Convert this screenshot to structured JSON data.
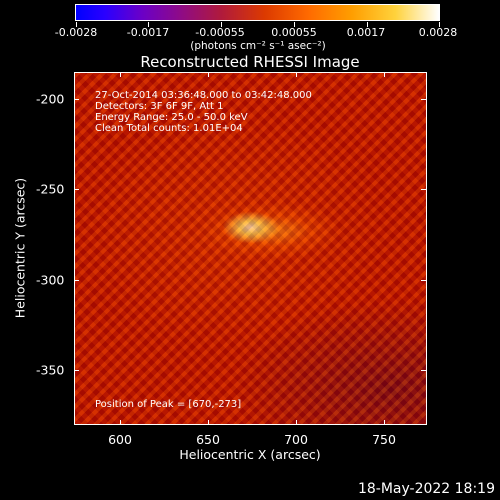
{
  "colorbar": {
    "labels": [
      "-0.0028",
      "-0.0017",
      "-0.00055",
      "0.00055",
      "0.0017",
      "0.0028"
    ],
    "units": "(photons cm⁻² s⁻¹ asec⁻²)",
    "colors": [
      "#0000ff",
      "#8c0a8c",
      "#dc3a00",
      "#ff9e00",
      "#ffffff"
    ]
  },
  "image": {
    "title": "Reconstructed RHESSI Image",
    "info_lines": [
      "27-Oct-2014 03:36:48.000 to 03:42:48.000",
      "Detectors: 3F 6F 9F, Att 1",
      "Energy Range: 25.0 - 50.0 keV",
      "Clean     Total counts: 1.01E+04"
    ],
    "peak_text": "Position of Peak = [670,-273]"
  },
  "axes": {
    "xlabel": "Heliocentric X (arcsec)",
    "ylabel": "Heliocentric Y (arcsec)",
    "xticks": [
      "600",
      "650",
      "700",
      "750"
    ],
    "yticks": [
      "-200",
      "-250",
      "-300",
      "-350"
    ]
  },
  "footer": {
    "timestamp": "18-May-2022 18:19"
  }
}
